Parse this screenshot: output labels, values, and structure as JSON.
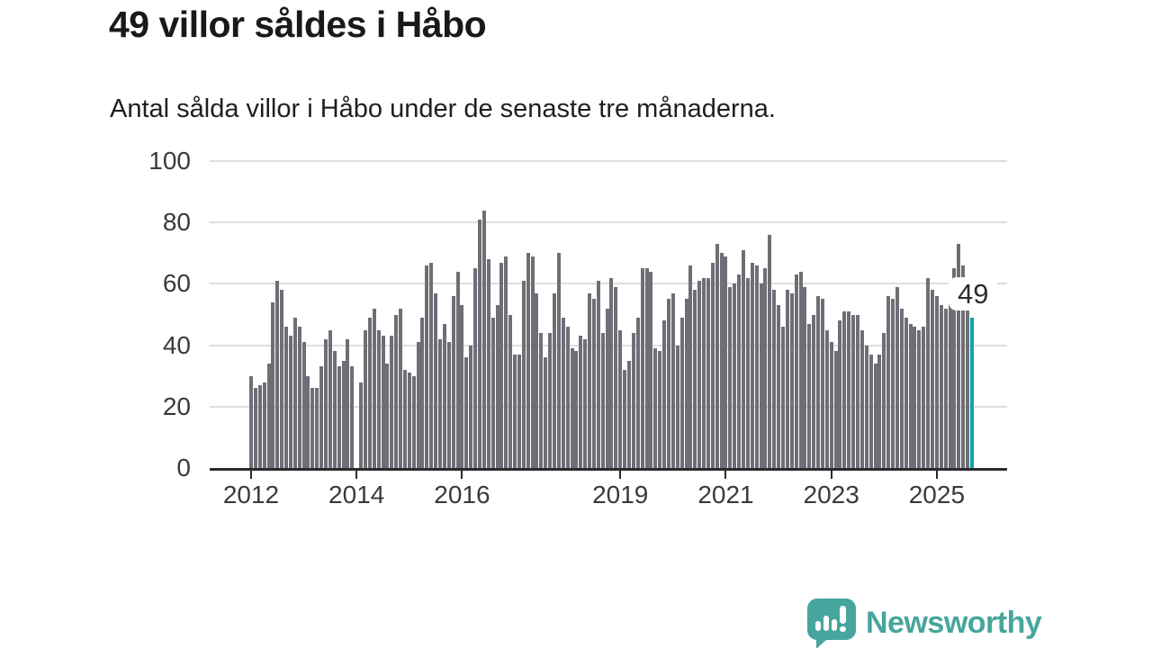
{
  "header": {
    "title": "49 villor såldes i Håbo",
    "subtitle": "Antal sålda villor i Håbo under de senaste tre månaderna."
  },
  "chart_data": {
    "type": "bar",
    "title": "49 villor såldes i Håbo",
    "subtitle": "Antal sålda villor i Håbo under de senaste tre månaderna.",
    "x_start": "2012-01",
    "x_interval": "month",
    "ylim": [
      0,
      100
    ],
    "y_ticks": [
      0,
      20,
      40,
      60,
      80,
      100
    ],
    "grid": true,
    "x_ticks": [
      {
        "label": "2012",
        "slot": 0
      },
      {
        "label": "2014",
        "slot": 24
      },
      {
        "label": "2016",
        "slot": 48
      },
      {
        "label": "2019",
        "slot": 84
      },
      {
        "label": "2021",
        "slot": 108
      },
      {
        "label": "2023",
        "slot": 132
      },
      {
        "label": "2025",
        "slot": 156
      }
    ],
    "values": [
      30,
      26,
      27,
      28,
      34,
      54,
      61,
      58,
      46,
      43,
      49,
      46,
      41,
      30,
      26,
      26,
      33,
      42,
      45,
      38,
      33,
      35,
      42,
      33,
      null,
      28,
      45,
      49,
      52,
      45,
      43,
      34,
      43,
      50,
      52,
      32,
      31,
      30,
      41,
      49,
      66,
      67,
      57,
      42,
      47,
      41,
      56,
      64,
      53,
      36,
      40,
      65,
      81,
      84,
      68,
      49,
      53,
      67,
      69,
      50,
      37,
      37,
      61,
      70,
      69,
      57,
      44,
      36,
      44,
      57,
      70,
      49,
      46,
      39,
      38,
      43,
      42,
      57,
      55,
      61,
      44,
      52,
      62,
      59,
      45,
      32,
      35,
      44,
      49,
      65,
      65,
      64,
      39,
      38,
      48,
      55,
      57,
      40,
      49,
      55,
      66,
      58,
      61,
      62,
      62,
      67,
      73,
      70,
      69,
      59,
      60,
      63,
      71,
      62,
      67,
      66,
      60,
      65,
      76,
      58,
      53,
      46,
      58,
      57,
      63,
      64,
      59,
      47,
      50,
      56,
      55,
      45,
      41,
      38,
      48,
      51,
      51,
      50,
      50,
      45,
      40,
      37,
      34,
      37,
      44,
      56,
      55,
      59,
      52,
      49,
      47,
      46,
      45,
      46,
      62,
      58,
      56,
      53,
      52,
      58,
      65,
      73,
      66,
      52,
      49
    ],
    "highlight": {
      "index": 164,
      "value": 49,
      "label": "49"
    }
  },
  "footer": {
    "brand": "Newsworthy"
  },
  "colors": {
    "bar": "#6e6e76",
    "highlight": "#12a2a6",
    "grid": "#dedede",
    "axis": "#2b2b2b",
    "brand": "#46a59c"
  }
}
